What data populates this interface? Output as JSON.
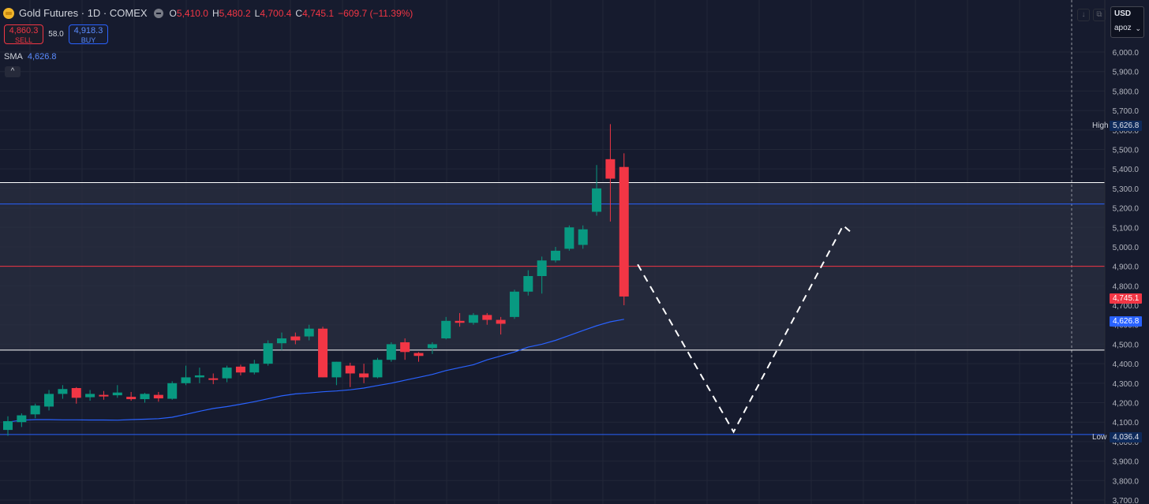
{
  "header": {
    "title": "Gold Futures · 1D · COMEX",
    "ohlc": [
      {
        "k": "O",
        "v": "5,410.0"
      },
      {
        "k": "H",
        "v": "5,480.2"
      },
      {
        "k": "L",
        "v": "4,700.4"
      },
      {
        "k": "C",
        "v": "4,745.1"
      }
    ],
    "change": "−609.7 (−11.39%)"
  },
  "trade": {
    "sell_price": "4,860.3",
    "sell_label": "SELL",
    "spread": "58.0",
    "buy_price": "4,918.3",
    "buy_label": "BUY"
  },
  "indicator": {
    "name": "SMA",
    "value": "4,626.8"
  },
  "collapse_label": "^",
  "toolbar": {
    "currency": "USD",
    "unit": "apoz",
    "chevron": "⌄",
    "down_icon": "↓",
    "box_icon": "⧉"
  },
  "tags": {
    "high_label": "High",
    "high_value": "5,626.8",
    "low_label": "Low",
    "low_value": "4,036.4",
    "last_value": "4,745.1",
    "sma_value": "4,626.8"
  },
  "colors": {
    "up": "#089981",
    "down": "#f23645",
    "sma": "#2962ff",
    "background": "#161b2e",
    "grid": "#222738",
    "text": "#d1d4dc"
  },
  "chart_data": {
    "type": "candlestick",
    "symbol": "Gold Futures",
    "interval": "1D",
    "exchange": "COMEX",
    "ylim": [
      3700,
      6100
    ],
    "y_ticks": [
      3700,
      3800,
      3900,
      4000,
      4100,
      4200,
      4300,
      4400,
      4500,
      4600,
      4700,
      4800,
      4900,
      5000,
      5100,
      5200,
      5300,
      5400,
      5500,
      5600,
      5700,
      5800,
      5900,
      6000
    ],
    "candles": [
      [
        4060,
        4130,
        4030,
        4105
      ],
      [
        4100,
        4145,
        4075,
        4135
      ],
      [
        4140,
        4195,
        4120,
        4185
      ],
      [
        4180,
        4265,
        4160,
        4245
      ],
      [
        4245,
        4290,
        4220,
        4270
      ],
      [
        4275,
        4280,
        4195,
        4225
      ],
      [
        4228,
        4265,
        4210,
        4245
      ],
      [
        4240,
        4260,
        4215,
        4232
      ],
      [
        4238,
        4290,
        4225,
        4252
      ],
      [
        4230,
        4255,
        4210,
        4218
      ],
      [
        4218,
        4250,
        4200,
        4245
      ],
      [
        4240,
        4255,
        4205,
        4222
      ],
      [
        4220,
        4310,
        4215,
        4300
      ],
      [
        4300,
        4390,
        4290,
        4330
      ],
      [
        4330,
        4380,
        4300,
        4340
      ],
      [
        4325,
        4350,
        4295,
        4322
      ],
      [
        4325,
        4390,
        4305,
        4380
      ],
      [
        4385,
        4395,
        4340,
        4355
      ],
      [
        4355,
        4420,
        4345,
        4400
      ],
      [
        4400,
        4520,
        4390,
        4505
      ],
      [
        4505,
        4560,
        4470,
        4530
      ],
      [
        4540,
        4560,
        4500,
        4520
      ],
      [
        4540,
        4600,
        4520,
        4580
      ],
      [
        4580,
        4590,
        4330,
        4330
      ],
      [
        4330,
        4410,
        4290,
        4410
      ],
      [
        4390,
        4405,
        4280,
        4350
      ],
      [
        4350,
        4400,
        4300,
        4330
      ],
      [
        4330,
        4430,
        4325,
        4420
      ],
      [
        4420,
        4510,
        4410,
        4500
      ],
      [
        4510,
        4530,
        4420,
        4460
      ],
      [
        4455,
        4460,
        4410,
        4440
      ],
      [
        4480,
        4510,
        4450,
        4500
      ],
      [
        4530,
        4640,
        4525,
        4620
      ],
      [
        4620,
        4660,
        4590,
        4610
      ],
      [
        4610,
        4660,
        4600,
        4650
      ],
      [
        4650,
        4660,
        4600,
        4625
      ],
      [
        4625,
        4640,
        4550,
        4605
      ],
      [
        4640,
        4780,
        4630,
        4770
      ],
      [
        4770,
        4880,
        4750,
        4850
      ],
      [
        4850,
        4950,
        4760,
        4930
      ],
      [
        4930,
        5000,
        4920,
        4980
      ],
      [
        4990,
        5110,
        4980,
        5100
      ],
      [
        5010,
        5110,
        4990,
        5090
      ],
      [
        5180,
        5420,
        5160,
        5300
      ],
      [
        5450,
        5630,
        5130,
        5350
      ],
      [
        5410,
        5480,
        4700,
        4745
      ]
    ],
    "sma": [
      4100,
      4110,
      4113,
      4113,
      4112,
      4112,
      4111,
      4111,
      4110,
      4113,
      4115,
      4118,
      4125,
      4140,
      4156,
      4170,
      4180,
      4192,
      4205,
      4220,
      4235,
      4245,
      4250,
      4256,
      4260,
      4266,
      4275,
      4288,
      4300,
      4315,
      4330,
      4345,
      4365,
      4380,
      4395,
      4420,
      4440,
      4460,
      4485,
      4500,
      4520,
      4545,
      4570,
      4595,
      4615,
      4628
    ],
    "lines": [
      {
        "value": 5330,
        "color": "#ffffff"
      },
      {
        "value": 5220,
        "color": "#2962ff"
      },
      {
        "value": 4900,
        "color": "#f23645"
      },
      {
        "value": 4470,
        "color": "#ffffff"
      },
      {
        "value": 4036.4,
        "color": "#2962ff"
      }
    ],
    "zone": [
      4470,
      5330
    ],
    "projection": [
      {
        "bar": 46,
        "y": 4910
      },
      {
        "bar": 53,
        "y": 4050
      },
      {
        "bar": 61,
        "y": 5110
      },
      {
        "bar": 61.5,
        "y": 5080
      }
    ],
    "high": 5626.8,
    "low": 4036.4,
    "last": 4745.1,
    "sma_last": 4626.8
  }
}
